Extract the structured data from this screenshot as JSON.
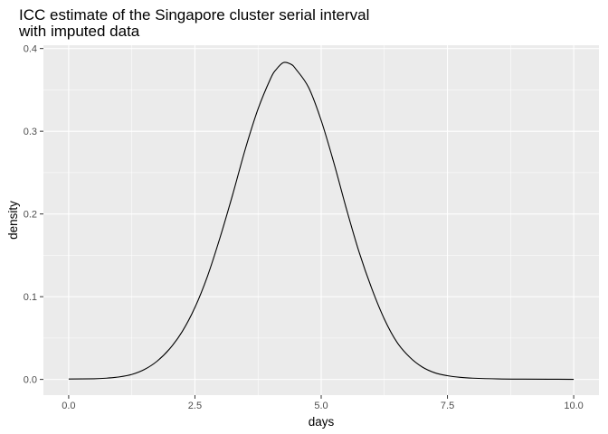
{
  "chart_data": {
    "type": "line",
    "title": "ICC estimate of the Singapore cluster serial interval",
    "subtitle": "with imputed data",
    "xlabel": "days",
    "ylabel": "density",
    "xlim": [
      -0.5,
      10.5
    ],
    "ylim": [
      -0.019,
      0.404
    ],
    "x_ticks": [
      0.0,
      2.5,
      5.0,
      7.5,
      10.0
    ],
    "x_tick_labels": [
      "0.0",
      "2.5",
      "5.0",
      "7.5",
      "10.0"
    ],
    "y_ticks": [
      0.0,
      0.1,
      0.2,
      0.3,
      0.4
    ],
    "y_tick_labels": [
      "0.0",
      "0.1",
      "0.2",
      "0.3",
      "0.4"
    ],
    "grid": true,
    "background": "#ebebeb",
    "grid_color": "#ffffff",
    "line_color": "#000000",
    "series": [
      {
        "x": [
          0.0,
          0.5,
          0.75,
          1.0,
          1.25,
          1.5,
          1.75,
          2.0,
          2.25,
          2.5,
          2.75,
          3.0,
          3.25,
          3.5,
          3.75,
          4.0,
          4.1,
          4.25,
          4.4,
          4.5,
          4.75,
          5.0,
          5.25,
          5.5,
          5.75,
          6.0,
          6.25,
          6.5,
          6.75,
          7.0,
          7.25,
          7.5,
          7.75,
          8.0,
          8.5,
          9.0,
          9.5,
          10.0
        ],
        "y": [
          0.0005,
          0.0008,
          0.0015,
          0.003,
          0.006,
          0.012,
          0.022,
          0.037,
          0.058,
          0.087,
          0.125,
          0.172,
          0.224,
          0.279,
          0.327,
          0.364,
          0.374,
          0.383,
          0.381,
          0.375,
          0.353,
          0.313,
          0.262,
          0.206,
          0.154,
          0.11,
          0.073,
          0.045,
          0.027,
          0.015,
          0.008,
          0.0045,
          0.0025,
          0.0015,
          0.0006,
          0.0003,
          0.0002,
          0.0001
        ]
      }
    ]
  }
}
